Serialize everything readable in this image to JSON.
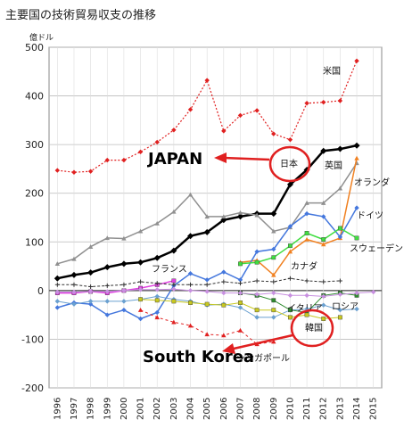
{
  "chart_data": {
    "type": "line",
    "title": "主要国の技術貿易収支の推移",
    "unit_label": "億ドル",
    "ylim": [
      -200,
      500
    ],
    "yticks": [
      -200,
      -100,
      0,
      100,
      200,
      300,
      400,
      500
    ],
    "categories": [
      "1996",
      "1997",
      "1998",
      "1999",
      "2000",
      "2001",
      "2002",
      "2003",
      "2004",
      "2005",
      "2006",
      "2007",
      "2008",
      "2009",
      "2010",
      "2011",
      "2012",
      "2013",
      "2014",
      "2015"
    ],
    "grid": true,
    "series": [
      {
        "name": "米国",
        "color": "#e02020",
        "marker": "diamond",
        "width": 1.2,
        "dash": "2,2",
        "values": [
          247,
          243,
          245,
          268,
          268,
          285,
          305,
          330,
          372,
          432,
          328,
          360,
          370,
          322,
          310,
          385,
          387,
          390,
          472,
          null
        ]
      },
      {
        "name": "日本",
        "color": "#000000",
        "marker": "diamond",
        "width": 2.5,
        "dash": "",
        "values": [
          25,
          32,
          37,
          48,
          55,
          58,
          67,
          82,
          112,
          120,
          145,
          152,
          158,
          158,
          218,
          248,
          287,
          291,
          298,
          null
        ]
      },
      {
        "name": "英国",
        "color": "#909090",
        "marker": "triangle",
        "width": 1.5,
        "dash": "",
        "values": [
          55,
          65,
          90,
          108,
          107,
          122,
          138,
          162,
          197,
          152,
          152,
          160,
          155,
          122,
          130,
          180,
          180,
          210,
          262,
          null
        ]
      },
      {
        "name": "オランダ",
        "color": "#f08020",
        "marker": "triangle",
        "width": 1.5,
        "dash": "",
        "values": [
          null,
          null,
          null,
          null,
          null,
          null,
          null,
          null,
          null,
          null,
          null,
          58,
          62,
          32,
          80,
          105,
          95,
          108,
          272,
          null
        ]
      },
      {
        "name": "ドイツ",
        "color": "#4477dd",
        "marker": "diamond",
        "width": 1.5,
        "dash": "",
        "values": [
          -35,
          -25,
          -28,
          -50,
          -40,
          -58,
          -45,
          10,
          35,
          22,
          38,
          22,
          80,
          85,
          132,
          158,
          152,
          110,
          170,
          null
        ]
      },
      {
        "name": "スウェーデン",
        "color": "#40dd40",
        "marker": "square",
        "width": 1.5,
        "dash": "",
        "values": [
          null,
          null,
          null,
          null,
          null,
          null,
          null,
          null,
          null,
          null,
          null,
          55,
          58,
          68,
          92,
          118,
          105,
          128,
          108,
          null
        ]
      },
      {
        "name": "フランス",
        "color": "#e040e0",
        "marker": "square",
        "width": 1.5,
        "dash": "",
        "values": [
          -5,
          -5,
          -2,
          -5,
          0,
          5,
          12,
          20,
          null,
          null,
          null,
          null,
          null,
          null,
          null,
          null,
          null,
          null,
          null,
          null
        ]
      },
      {
        "name": "カナダ",
        "color": "#333333",
        "marker": "plus",
        "width": 1,
        "dash": "3,2",
        "values": [
          12,
          12,
          8,
          10,
          12,
          18,
          15,
          12,
          12,
          12,
          18,
          15,
          20,
          18,
          25,
          20,
          18,
          20,
          null,
          null
        ]
      },
      {
        "name": "イタリア",
        "color": "#6aa0d0",
        "marker": "diamond",
        "width": 1,
        "dash": "",
        "values": [
          -22,
          -28,
          -22,
          -22,
          -22,
          -18,
          -12,
          -18,
          -22,
          -30,
          -28,
          -35,
          -55,
          -55,
          -40,
          -38,
          -30,
          -40,
          -38,
          null
        ]
      },
      {
        "name": "ロシア",
        "color": "#2e8b2e",
        "marker": "square",
        "width": 1,
        "dash": "",
        "values": [
          null,
          null,
          null,
          null,
          null,
          null,
          null,
          null,
          null,
          null,
          null,
          -5,
          -10,
          -20,
          -40,
          -45,
          -10,
          -5,
          -10,
          null
        ]
      },
      {
        "name": "韓国",
        "color": "#c8c820",
        "marker": "square",
        "width": 1,
        "dash": "",
        "values": [
          null,
          null,
          null,
          null,
          null,
          -18,
          -20,
          -22,
          -25,
          -28,
          -30,
          -25,
          -40,
          -40,
          -55,
          -50,
          -58,
          -55,
          null,
          null
        ]
      },
      {
        "name": "シンガポール",
        "color": "#e02020",
        "marker": "triangle",
        "width": 1,
        "dash": "3,3",
        "values": [
          null,
          null,
          null,
          null,
          null,
          -40,
          -55,
          -65,
          -72,
          -90,
          -92,
          -82,
          -110,
          -105,
          null,
          null,
          null,
          null,
          null,
          null
        ]
      },
      {
        "name": "",
        "color": "#c890e0",
        "marker": "diamond",
        "width": 1,
        "dash": "",
        "values": [
          -3,
          -3,
          -2,
          -2,
          0,
          2,
          2,
          3,
          0,
          -2,
          -5,
          -5,
          -8,
          -5,
          -10,
          -10,
          -12,
          -8,
          -5,
          -3
        ]
      }
    ],
    "annotations": [
      {
        "text": "JAPAN"
      },
      {
        "text": "South Korea"
      }
    ]
  }
}
